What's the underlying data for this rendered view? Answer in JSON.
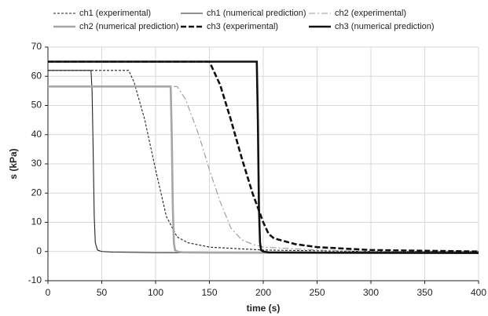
{
  "chart_data": {
    "type": "line",
    "xlabel": "time (s)",
    "ylabel": "s (kPa)",
    "xlim": [
      0,
      400
    ],
    "xticks": [
      0,
      50,
      100,
      150,
      200,
      250,
      300,
      350,
      400
    ],
    "ylim": [
      -10,
      70
    ],
    "yticks": [
      -10,
      0,
      10,
      20,
      30,
      40,
      50,
      60,
      70
    ],
    "grid": true,
    "series": [
      {
        "name": "ch1 (experimental)",
        "color": "#222222",
        "linestyle": "dashed",
        "weight": "thin",
        "x": [
          0,
          75,
          80,
          90,
          100,
          110,
          120,
          130,
          150,
          200,
          300,
          400
        ],
        "values": [
          62,
          62,
          58,
          45,
          28,
          12,
          5,
          3,
          1.5,
          0.5,
          0,
          0
        ]
      },
      {
        "name": "ch1 (numerical prediction)",
        "color": "#222222",
        "linestyle": "solid",
        "weight": "thin",
        "x": [
          0,
          40,
          41,
          42,
          43,
          44,
          46,
          50,
          60,
          100,
          400
        ],
        "values": [
          62,
          62,
          55,
          35,
          12,
          3,
          0.5,
          0,
          -0.2,
          -0.4,
          -0.5
        ]
      },
      {
        "name": "ch2 (experimental)",
        "color": "#999999",
        "linestyle": "dashdot",
        "weight": "thin",
        "x": [
          0,
          120,
          128,
          140,
          150,
          160,
          170,
          180,
          190,
          200,
          250,
          300,
          400
        ],
        "values": [
          56.5,
          56.5,
          52,
          40,
          28,
          17,
          8,
          4,
          2.5,
          1.5,
          0.5,
          0,
          0
        ]
      },
      {
        "name": "ch2 (numerical prediction)",
        "color": "#a6a6a6",
        "linestyle": "solid",
        "weight": "thick",
        "x": [
          0,
          114,
          115,
          116,
          117,
          118,
          120,
          125,
          150,
          400
        ],
        "values": [
          56.5,
          56.5,
          40,
          15,
          3,
          0.5,
          0,
          -0.3,
          -0.4,
          -0.5
        ]
      },
      {
        "name": "ch3 (experimental)",
        "color": "#111111",
        "linestyle": "dashed",
        "weight": "thick",
        "x": [
          0,
          150,
          160,
          170,
          180,
          190,
          200,
          205,
          210,
          230,
          250,
          300,
          400
        ],
        "values": [
          65,
          65,
          57,
          45,
          32,
          20,
          10,
          6,
          4.5,
          2.5,
          1.5,
          0.5,
          0
        ]
      },
      {
        "name": "ch3 (numerical prediction)",
        "color": "#111111",
        "linestyle": "solid",
        "weight": "thick",
        "x": [
          0,
          194,
          195,
          196,
          197,
          198,
          200,
          205,
          250,
          400
        ],
        "values": [
          65,
          65,
          45,
          15,
          3,
          0.5,
          0,
          -0.3,
          -0.4,
          -0.5
        ]
      }
    ]
  }
}
